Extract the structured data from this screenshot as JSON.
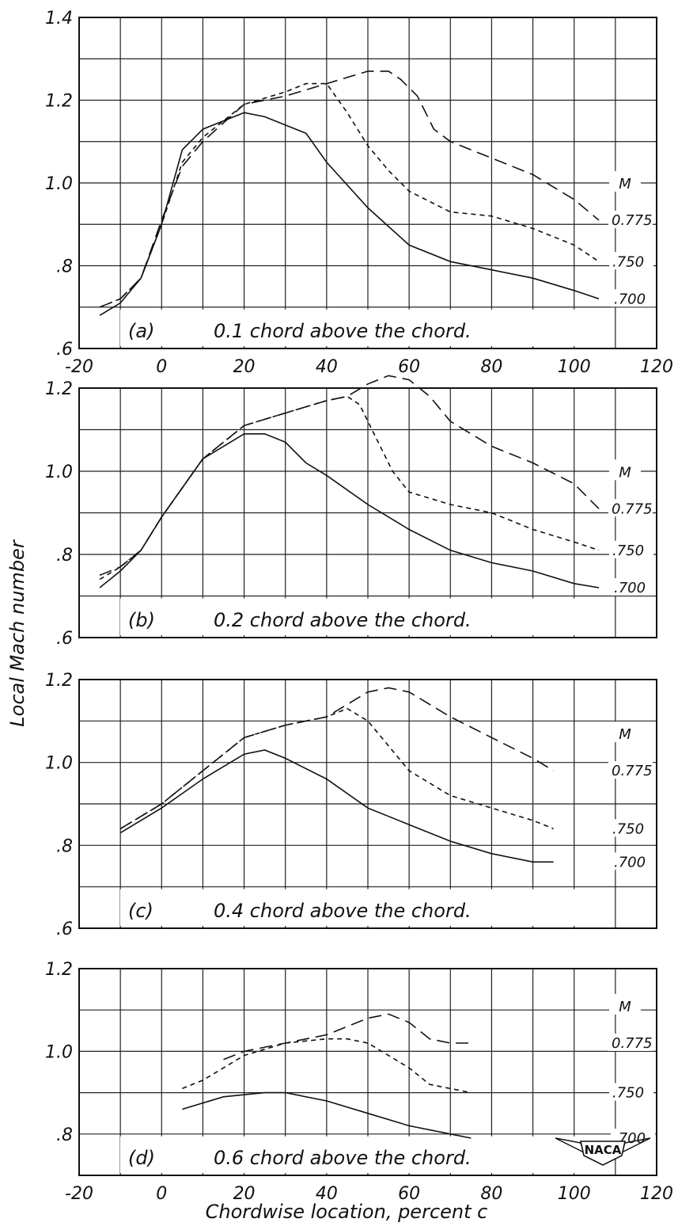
{
  "figure": {
    "ylabel": "Local Mach number",
    "xlabel": "Chordwise location, percent c",
    "legend_symbol": "M",
    "logo_text": "NACA"
  },
  "chart_data": [
    {
      "type": "line",
      "panel": "(a)",
      "title": "0.1 chord above the chord.",
      "xlim": [
        -20,
        120
      ],
      "ylim": [
        0.6,
        1.4
      ],
      "xticks": [
        "-20",
        "0",
        "20",
        "40",
        "60",
        "80",
        "100",
        "120"
      ],
      "yticks": [
        ".6",
        ".8",
        "1.0",
        "1.2",
        "1.4"
      ],
      "series": [
        {
          "name": "0.775",
          "style": "long-dash",
          "x": [
            -15,
            -10,
            -5,
            0,
            5,
            10,
            20,
            30,
            40,
            50,
            55,
            58,
            62,
            66,
            70,
            80,
            90,
            100,
            106
          ],
          "y": [
            0.7,
            0.72,
            0.77,
            0.91,
            1.04,
            1.1,
            1.19,
            1.21,
            1.24,
            1.27,
            1.27,
            1.25,
            1.21,
            1.13,
            1.1,
            1.06,
            1.02,
            0.96,
            0.91
          ]
        },
        {
          "name": ".750",
          "style": "short-dash",
          "x": [
            -15,
            -10,
            -5,
            0,
            5,
            10,
            20,
            30,
            35,
            40,
            45,
            50,
            55,
            60,
            70,
            80,
            90,
            100,
            106
          ],
          "y": [
            0.7,
            0.72,
            0.77,
            0.9,
            1.05,
            1.11,
            1.19,
            1.22,
            1.24,
            1.24,
            1.17,
            1.09,
            1.03,
            0.98,
            0.93,
            0.92,
            0.89,
            0.85,
            0.81
          ]
        },
        {
          "name": ".700",
          "style": "solid",
          "x": [
            -15,
            -10,
            -5,
            0,
            5,
            10,
            15,
            20,
            25,
            30,
            35,
            40,
            50,
            60,
            70,
            80,
            90,
            100,
            106
          ],
          "y": [
            0.68,
            0.71,
            0.77,
            0.9,
            1.08,
            1.13,
            1.15,
            1.17,
            1.16,
            1.14,
            1.12,
            1.05,
            0.94,
            0.85,
            0.81,
            0.79,
            0.77,
            0.74,
            0.72
          ]
        }
      ]
    },
    {
      "type": "line",
      "panel": "(b)",
      "title": "0.2 chord above the chord.",
      "xlim": [
        -20,
        120
      ],
      "ylim": [
        0.6,
        1.2
      ],
      "xticks": [],
      "yticks": [
        ".6",
        ".8",
        "1.0",
        "1.2"
      ],
      "series": [
        {
          "name": "0.775",
          "style": "long-dash",
          "x": [
            -15,
            -10,
            -5,
            0,
            10,
            20,
            30,
            40,
            45,
            50,
            55,
            60,
            65,
            70,
            80,
            90,
            100,
            106
          ],
          "y": [
            0.75,
            0.77,
            0.81,
            0.89,
            1.03,
            1.11,
            1.14,
            1.17,
            1.18,
            1.21,
            1.23,
            1.22,
            1.18,
            1.12,
            1.06,
            1.02,
            0.97,
            0.91
          ]
        },
        {
          "name": ".750",
          "style": "short-dash",
          "x": [
            -15,
            -10,
            -5,
            0,
            10,
            20,
            30,
            40,
            45,
            48,
            52,
            56,
            60,
            70,
            80,
            90,
            100,
            106
          ],
          "y": [
            0.74,
            0.77,
            0.81,
            0.89,
            1.03,
            1.11,
            1.14,
            1.17,
            1.18,
            1.16,
            1.08,
            1.0,
            0.95,
            0.92,
            0.9,
            0.86,
            0.83,
            0.81
          ]
        },
        {
          "name": ".700",
          "style": "solid",
          "x": [
            -15,
            -10,
            -5,
            0,
            10,
            20,
            25,
            30,
            35,
            40,
            50,
            60,
            70,
            80,
            90,
            100,
            106
          ],
          "y": [
            0.72,
            0.76,
            0.81,
            0.89,
            1.03,
            1.09,
            1.09,
            1.07,
            1.02,
            0.99,
            0.92,
            0.86,
            0.81,
            0.78,
            0.76,
            0.73,
            0.72
          ]
        }
      ]
    },
    {
      "type": "line",
      "panel": "(c)",
      "title": "0.4 chord above the chord.",
      "xlim": [
        -20,
        120
      ],
      "ylim": [
        0.6,
        1.2
      ],
      "xticks": [],
      "yticks": [
        ".6",
        ".8",
        "1.0",
        "1.2"
      ],
      "series": [
        {
          "name": "0.775",
          "style": "long-dash",
          "x": [
            -10,
            0,
            10,
            20,
            30,
            40,
            45,
            50,
            55,
            60,
            70,
            80,
            90,
            95
          ],
          "y": [
            0.84,
            0.9,
            0.98,
            1.06,
            1.09,
            1.11,
            1.14,
            1.17,
            1.18,
            1.17,
            1.11,
            1.06,
            1.01,
            0.98
          ]
        },
        {
          "name": ".750",
          "style": "short-dash",
          "x": [
            -10,
            0,
            10,
            20,
            30,
            40,
            45,
            50,
            55,
            60,
            70,
            80,
            90,
            95
          ],
          "y": [
            0.84,
            0.9,
            0.98,
            1.06,
            1.09,
            1.11,
            1.13,
            1.1,
            1.04,
            0.98,
            0.92,
            0.89,
            0.86,
            0.84
          ]
        },
        {
          "name": ".700",
          "style": "solid",
          "x": [
            -10,
            0,
            10,
            20,
            25,
            30,
            40,
            50,
            60,
            70,
            80,
            90,
            95
          ],
          "y": [
            0.83,
            0.89,
            0.96,
            1.02,
            1.03,
            1.01,
            0.96,
            0.89,
            0.85,
            0.81,
            0.78,
            0.76,
            0.76
          ]
        }
      ]
    },
    {
      "type": "line",
      "panel": "(d)",
      "title": "0.6 chord above the chord.",
      "xlim": [
        -20,
        120
      ],
      "ylim": [
        0.7,
        1.2
      ],
      "xticks": [
        "-20",
        "0",
        "20",
        "40",
        "60",
        "80",
        "100",
        "120"
      ],
      "yticks": [
        ".8",
        "1.0",
        "1.2"
      ],
      "series": [
        {
          "name": "0.775",
          "style": "long-dash",
          "x": [
            15,
            20,
            30,
            40,
            50,
            55,
            60,
            65,
            70,
            75
          ],
          "y": [
            0.98,
            1.0,
            1.02,
            1.04,
            1.08,
            1.09,
            1.07,
            1.03,
            1.02,
            1.02
          ]
        },
        {
          "name": ".750",
          "style": "short-dash",
          "x": [
            5,
            10,
            15,
            20,
            30,
            40,
            45,
            50,
            55,
            60,
            65,
            70,
            75
          ],
          "y": [
            0.91,
            0.93,
            0.96,
            0.99,
            1.02,
            1.03,
            1.03,
            1.02,
            0.99,
            0.96,
            0.92,
            0.91,
            0.9
          ]
        },
        {
          "name": ".700",
          "style": "solid",
          "x": [
            5,
            15,
            25,
            30,
            40,
            50,
            60,
            70,
            75
          ],
          "y": [
            0.86,
            0.89,
            0.9,
            0.9,
            0.88,
            0.85,
            0.82,
            0.8,
            0.79
          ]
        }
      ]
    }
  ]
}
